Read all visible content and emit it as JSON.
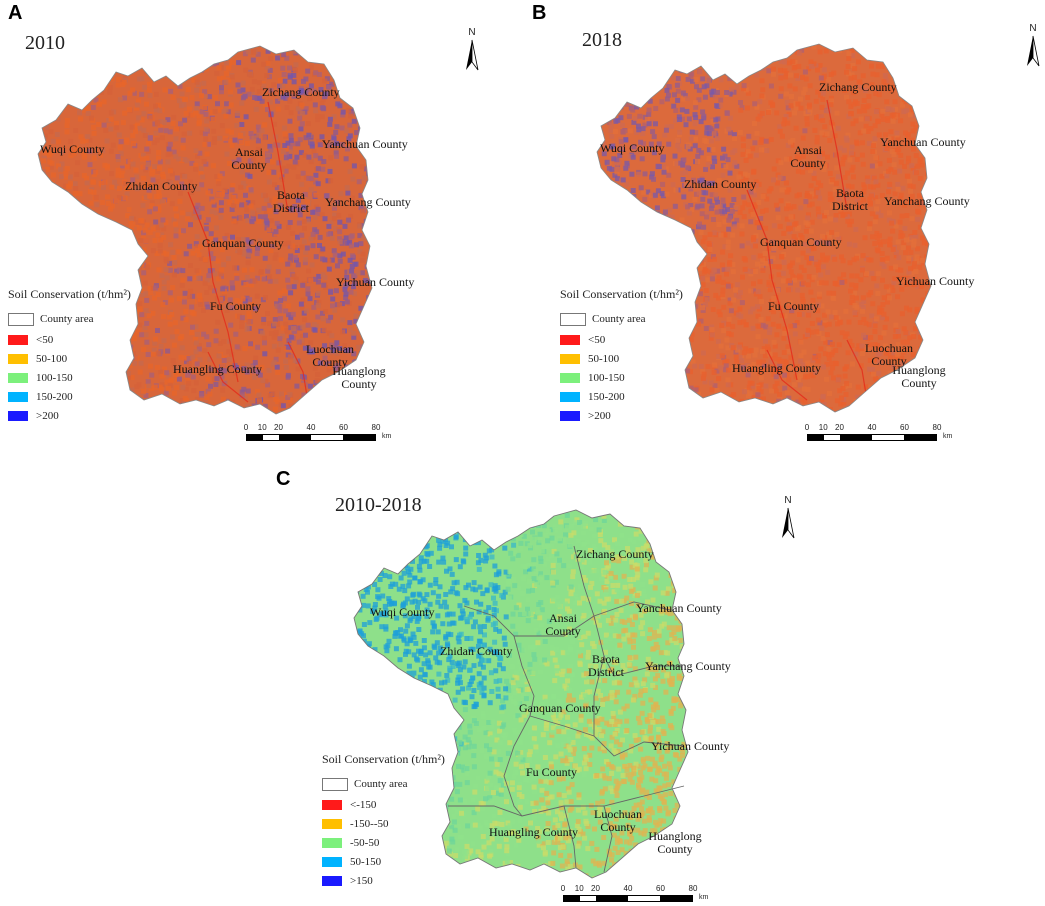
{
  "panels": [
    {
      "letter": "A",
      "year": "2010",
      "palette": [
        "#e8652a",
        "#d6623a",
        "#c66a4f",
        "#a8607a",
        "#8a5a95",
        "#7055b0"
      ],
      "labels": {
        "wuqi": "Wuqi County",
        "zhidan": "Zhidan County",
        "ansai": "Ansai County",
        "zichang": "Zichang County",
        "yanchuan": "Yanchuan County",
        "baota": "Baota District",
        "yanchang": "Yanchang County",
        "ganquan": "Ganquan County",
        "yichuan": "Yichuan County",
        "fu": "Fu County",
        "huangling": "Huangling County",
        "luochuan": "Luochuan County",
        "huanglong": "Huanglong County"
      },
      "legend": {
        "title": "Soil Conservation (t/hm²)",
        "county_area": "County area",
        "classes": [
          {
            "label": "<50",
            "color": "#ff1a1a"
          },
          {
            "label": "50-100",
            "color": "#ffbf00"
          },
          {
            "label": "100-150",
            "color": "#7cf07c"
          },
          {
            "label": "150-200",
            "color": "#00b3ff"
          },
          {
            "label": ">200",
            "color": "#1a1aff"
          }
        ]
      }
    },
    {
      "letter": "B",
      "year": "2018",
      "palette": [
        "#e8602e",
        "#e4703a",
        "#cf6a50",
        "#b06070",
        "#915c90",
        "#7a5aa8"
      ],
      "labels": {
        "wuqi": "Wuqi County",
        "zhidan": "Zhidan County",
        "ansai": "Ansai County",
        "zichang": "Zichang County",
        "yanchuan": "Yanchuan County",
        "baota": "Baota District",
        "yanchang": "Yanchang County",
        "ganquan": "Ganquan County",
        "yichuan": "Yichuan County",
        "fu": "Fu County",
        "huangling": "Huangling County",
        "luochuan": "Luochuan County",
        "huanglong": "Huanglong County"
      },
      "legend": {
        "title": "Soil Conservation (t/hm²)",
        "county_area": "County area",
        "classes": [
          {
            "label": "<50",
            "color": "#ff1a1a"
          },
          {
            "label": "50-100",
            "color": "#ffbf00"
          },
          {
            "label": "100-150",
            "color": "#7cf07c"
          },
          {
            "label": "150-200",
            "color": "#00b3ff"
          },
          {
            "label": ">200",
            "color": "#1a1aff"
          }
        ]
      }
    },
    {
      "letter": "C",
      "year": "2010-2018",
      "palette": [
        "#1ea0d8",
        "#38b8c8",
        "#6ed69a",
        "#8fe28a",
        "#c8dc6a",
        "#e0b450"
      ],
      "labels": {
        "wuqi": "Wuqi County",
        "zhidan": "Zhidan County",
        "ansai": "Ansai County",
        "zichang": "Zichang County",
        "yanchuan": "Yanchuan County",
        "baota": "Baota District",
        "yanchang": "Yanchang County",
        "ganquan": "Ganquan County",
        "yichuan": "Yichuan County",
        "fu": "Fu County",
        "huangling": "Huangling County",
        "luochuan": "Luochuan County",
        "huanglong": "Huanglong County"
      },
      "legend": {
        "title": "Soil Conservation (t/hm²)",
        "county_area": "County area",
        "classes": [
          {
            "label": "<-150",
            "color": "#ff1a1a"
          },
          {
            "label": "-150--50",
            "color": "#ffbf00"
          },
          {
            "label": "-50-50",
            "color": "#7cf07c"
          },
          {
            "label": "50-150",
            "color": "#00b3ff"
          },
          {
            "label": ">150",
            "color": "#1a1aff"
          }
        ]
      }
    }
  ],
  "north_symbol": "N",
  "scale_bar": {
    "ticks": [
      "0",
      "10",
      "20",
      "40",
      "60",
      "80"
    ],
    "unit": "km"
  }
}
